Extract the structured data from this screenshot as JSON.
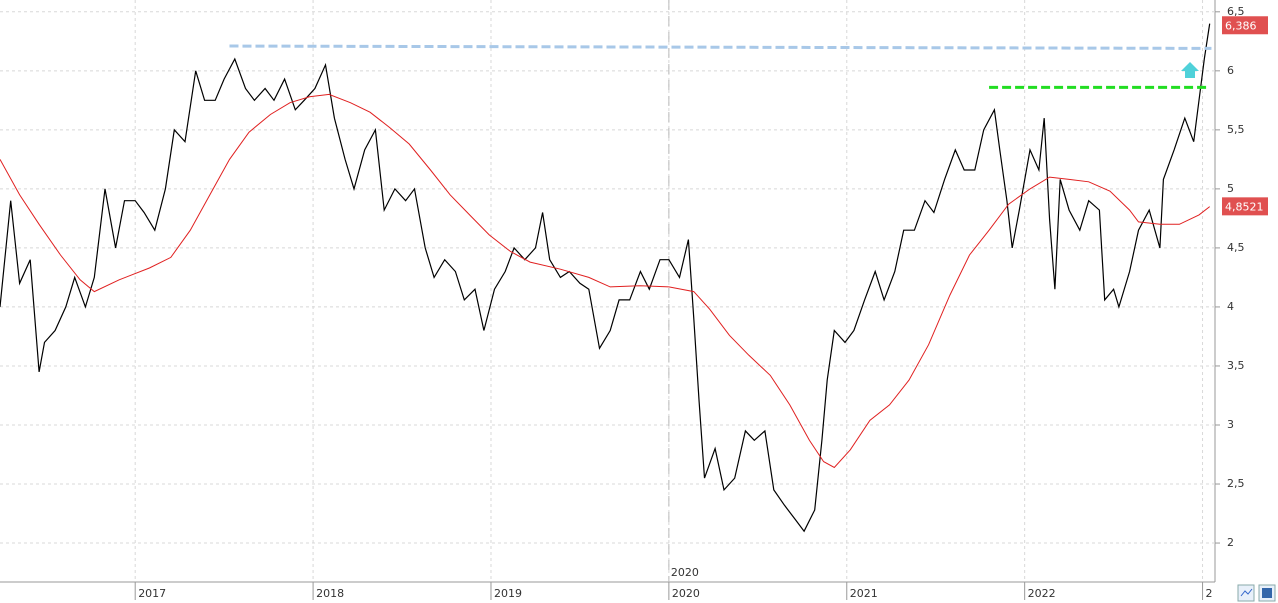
{
  "chart_data": {
    "type": "line",
    "xlim": [
      2016.24,
      2023.07
    ],
    "ylim": [
      1.67,
      6.6
    ],
    "xticks": [
      2017,
      2018,
      2019,
      2020,
      2021,
      2022,
      {
        "value": 2023,
        "label": "2"
      }
    ],
    "yticks": [
      2,
      {
        "value": 2.5,
        "label": "2,5"
      },
      3,
      {
        "value": 3.5,
        "label": "3,5"
      },
      4,
      {
        "value": 4.5,
        "label": "4,5"
      },
      5,
      {
        "value": 5.5,
        "label": "5,5"
      },
      6,
      {
        "value": 6.5,
        "label": "6,5"
      }
    ],
    "grid": true,
    "marker": {
      "value": 2020,
      "label": "2020"
    },
    "series": [
      {
        "color": "#000000",
        "x": [
          2016.24,
          2016.3,
          2016.35,
          2016.41,
          2016.46,
          2016.49,
          2016.55,
          2016.61,
          2016.66,
          2016.72,
          2016.77,
          2016.83,
          2016.89,
          2016.94,
          2017.0,
          2017.05,
          2017.11,
          2017.17,
          2017.22,
          2017.28,
          2017.34,
          2017.39,
          2017.45,
          2017.5,
          2017.56,
          2017.62,
          2017.67,
          2017.73,
          2017.78,
          2017.84,
          2017.9,
          2017.95,
          2018.01,
          2018.07,
          2018.12,
          2018.18,
          2018.23,
          2018.29,
          2018.35,
          2018.4,
          2018.46,
          2018.52,
          2018.57,
          2018.63,
          2018.68,
          2018.74,
          2018.8,
          2018.85,
          2018.91,
          2018.96,
          2019.02,
          2019.08,
          2019.13,
          2019.19,
          2019.25,
          2019.29,
          2019.33,
          2019.39,
          2019.44,
          2019.5,
          2019.55,
          2019.61,
          2019.67,
          2019.72,
          2019.78,
          2019.84,
          2019.89,
          2019.95,
          2020.0,
          2020.06,
          2020.11,
          2020.14,
          2020.17,
          2020.2,
          2020.26,
          2020.31,
          2020.37,
          2020.43,
          2020.48,
          2020.54,
          2020.59,
          2020.65,
          2020.71,
          2020.76,
          2020.82,
          2020.86,
          2020.89,
          2020.93,
          2020.99,
          2021.04,
          2021.1,
          2021.16,
          2021.21,
          2021.27,
          2021.32,
          2021.38,
          2021.44,
          2021.49,
          2021.55,
          2021.61,
          2021.66,
          2021.72,
          2021.77,
          2021.83,
          2021.86,
          2021.9,
          2021.93,
          2021.97,
          2022.03,
          2022.08,
          2022.11,
          2022.14,
          2022.17,
          2022.2,
          2022.25,
          2022.31,
          2022.36,
          2022.42,
          2022.45,
          2022.5,
          2022.53,
          2022.59,
          2022.64,
          2022.7,
          2022.76,
          2022.78,
          2022.84,
          2022.9,
          2022.95,
          2022.98,
          2023.01,
          2023.04
        ],
        "values": [
          4.0,
          4.9,
          4.2,
          4.4,
          3.45,
          3.7,
          3.8,
          4.0,
          4.25,
          4.0,
          4.25,
          5.0,
          4.5,
          4.9,
          4.9,
          4.8,
          4.65,
          5.0,
          5.5,
          5.4,
          6.0,
          5.75,
          5.75,
          5.93,
          6.1,
          5.85,
          5.75,
          5.85,
          5.75,
          5.93,
          5.67,
          5.75,
          5.85,
          6.05,
          5.6,
          5.25,
          5.0,
          5.33,
          5.5,
          4.82,
          5.0,
          4.9,
          5.0,
          4.5,
          4.25,
          4.4,
          4.3,
          4.06,
          4.15,
          3.8,
          4.15,
          4.3,
          4.5,
          4.4,
          4.5,
          4.8,
          4.4,
          4.25,
          4.3,
          4.2,
          4.15,
          3.65,
          3.8,
          4.06,
          4.06,
          4.3,
          4.15,
          4.4,
          4.4,
          4.25,
          4.57,
          3.9,
          3.2,
          2.55,
          2.8,
          2.45,
          2.55,
          2.95,
          2.87,
          2.95,
          2.45,
          2.32,
          2.2,
          2.1,
          2.28,
          2.87,
          3.38,
          3.8,
          3.7,
          3.8,
          4.06,
          4.3,
          4.06,
          4.3,
          4.65,
          4.65,
          4.9,
          4.8,
          5.08,
          5.33,
          5.16,
          5.16,
          5.5,
          5.67,
          5.33,
          4.9,
          4.5,
          4.82,
          5.33,
          5.16,
          5.6,
          4.74,
          4.15,
          5.08,
          4.82,
          4.65,
          4.9,
          4.82,
          4.06,
          4.15,
          4.0,
          4.3,
          4.65,
          4.82,
          4.5,
          5.08,
          5.33,
          5.6,
          5.4,
          5.75,
          6.1,
          6.4
        ]
      },
      {
        "color": "#e02020",
        "x": [
          2016.24,
          2016.35,
          2016.46,
          2016.58,
          2016.69,
          2016.77,
          2016.91,
          2017.08,
          2017.2,
          2017.31,
          2017.42,
          2017.53,
          2017.64,
          2017.76,
          2017.87,
          2017.98,
          2018.09,
          2018.21,
          2018.32,
          2018.43,
          2018.54,
          2018.66,
          2018.77,
          2018.88,
          2018.99,
          2019.11,
          2019.22,
          2019.39,
          2019.55,
          2019.67,
          2019.84,
          2020.0,
          2020.14,
          2020.23,
          2020.34,
          2020.45,
          2020.57,
          2020.68,
          2020.79,
          2020.87,
          2020.93,
          2021.02,
          2021.13,
          2021.24,
          2021.35,
          2021.46,
          2021.58,
          2021.69,
          2021.8,
          2021.91,
          2022.03,
          2022.14,
          2022.25,
          2022.36,
          2022.48,
          2022.59,
          2022.64,
          2022.76,
          2022.87,
          2022.98,
          2023.04
        ],
        "values": [
          5.25,
          4.95,
          4.7,
          4.44,
          4.23,
          4.13,
          4.23,
          4.33,
          4.42,
          4.65,
          4.95,
          5.25,
          5.48,
          5.63,
          5.73,
          5.78,
          5.8,
          5.73,
          5.65,
          5.52,
          5.38,
          5.16,
          4.95,
          4.78,
          4.61,
          4.47,
          4.38,
          4.32,
          4.25,
          4.17,
          4.18,
          4.17,
          4.13,
          3.98,
          3.76,
          3.59,
          3.42,
          3.17,
          2.87,
          2.69,
          2.64,
          2.79,
          3.04,
          3.17,
          3.38,
          3.68,
          4.1,
          4.44,
          4.65,
          4.87,
          5.0,
          5.1,
          5.08,
          5.06,
          4.98,
          4.82,
          4.72,
          4.7,
          4.7,
          4.78,
          4.85
        ]
      }
    ],
    "levels": [
      {
        "x": [
          2017.53,
          2023.05
        ],
        "y": [
          6.21,
          6.19
        ],
        "color": "#a8c8e8"
      },
      {
        "x": [
          2021.8,
          2023.04
        ],
        "y": [
          5.86,
          5.86
        ],
        "color": "#22dd22"
      }
    ],
    "annotations": [
      {
        "value": 6.386,
        "label": "6,386",
        "color": "#e05050"
      },
      {
        "value": 4.8521,
        "label": "4,8521",
        "color": "#e05050"
      }
    ]
  }
}
